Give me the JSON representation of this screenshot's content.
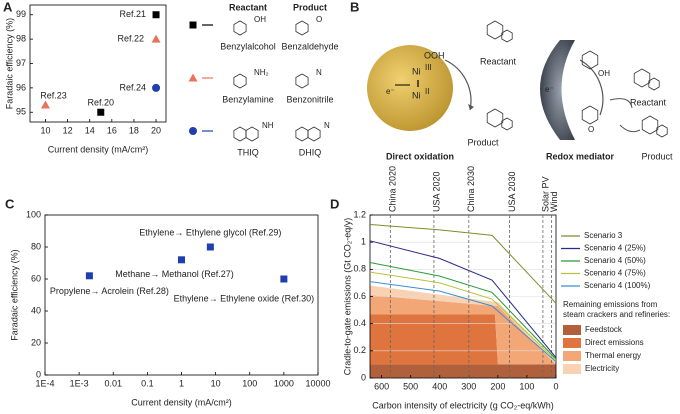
{
  "chart_data": [
    {
      "panel": "A",
      "type": "scatter",
      "xlabel": "Current density (mA/cm²)",
      "ylabel": "Faradaic efficiency (%)",
      "xlim": [
        8.6,
        20.9
      ],
      "xticks": [
        10,
        12,
        14,
        16,
        18,
        20
      ],
      "ylim": [
        94.6,
        99.4
      ],
      "yticks": [
        95,
        96,
        97,
        98,
        99
      ],
      "legend_headers": [
        "Reactant",
        "Product"
      ],
      "series": [
        {
          "marker": "square",
          "color": "#000000",
          "reactant": "Benzylalcohol",
          "product": "Benzaldehyde",
          "reactant_atom": "OH",
          "product_atom": "O",
          "x": [
            20,
            15
          ],
          "values": [
            99,
            95
          ],
          "point_labels": [
            "Ref.21",
            "Ref.20"
          ]
        },
        {
          "marker": "triangle",
          "color": "#e8735a",
          "reactant": "Benzylamine",
          "product": "Benzonitrile",
          "reactant_atom": "NH₂",
          "product_atom": "N",
          "x": [
            20,
            10
          ],
          "values": [
            98,
            95.3
          ],
          "point_labels": [
            "Ref.22",
            "Ref.23"
          ]
        },
        {
          "marker": "circle",
          "color": "#1f3fb0",
          "reactant": "THIQ",
          "product": "DHIQ",
          "reactant_atom": "NH",
          "product_atom": "N",
          "x": [
            20
          ],
          "values": [
            96
          ],
          "point_labels": [
            "Ref.24"
          ]
        }
      ]
    },
    {
      "panel": "C",
      "type": "scatter",
      "log_x": true,
      "xlabel": "Current density (mA/cm²)",
      "ylabel": "Faradaic efficiency (%)",
      "xlim": [
        0.0001,
        10000
      ],
      "xticks": [
        {
          "value": 0.0001,
          "label": "1E-4"
        },
        {
          "value": 0.001,
          "label": "1E-3"
        },
        0.01,
        0.1,
        1,
        10,
        100,
        1000,
        10000
      ],
      "ylim": [
        0,
        100
      ],
      "yticks": [
        0,
        20,
        40,
        60,
        80,
        100
      ],
      "series": [
        {
          "marker": "square",
          "color": "#1f3fb0",
          "x": [
            0.002,
            1,
            7,
            1000
          ],
          "values": [
            62,
            72,
            80,
            60
          ],
          "point_labels": [
            "Propylene→ Acrolein (Ref.28)",
            "Methane→ Methanol (Ref.27)",
            "Ethylene→ Ethylene glycol (Ref.29)",
            "Ethylene→ Ethylene oxide (Ref.30)"
          ]
        }
      ]
    },
    {
      "panel": "D",
      "type": "line_area",
      "xlabel": "Carbon intensity of electricity (g CO₂-eq/kWh)",
      "ylabel": "Cradle-to-gate emissions (Gt CO₂-eq/y)",
      "xlim": [
        640,
        0
      ],
      "xticks": [
        600,
        500,
        400,
        300,
        200,
        100,
        0
      ],
      "ylim": [
        0,
        1.2
      ],
      "yticks": [
        0,
        0.2,
        0.4,
        0.6,
        0.8,
        1,
        1.2
      ],
      "grid": true,
      "vlines": [
        {
          "label": "China 2020",
          "value": 570
        },
        {
          "label": "USA 2020",
          "value": 420
        },
        {
          "label": "China 2030",
          "value": 300
        },
        {
          "label": "USA 2030",
          "value": 160
        },
        {
          "label": "Solar PV",
          "value": 45
        },
        {
          "label": "Wind",
          "value": 15
        }
      ],
      "legend_note": [
        "Remaining emissions from",
        "steam crackers and refineries:"
      ],
      "series": [
        {
          "name": "Scenario 3",
          "color": "#7a8f2a",
          "x": [
            640,
            400,
            220,
            0
          ],
          "values": [
            1.13,
            1.09,
            1.05,
            0.55
          ]
        },
        {
          "name": "Scenario 4 (25%)",
          "color": "#2a2a8a",
          "x": [
            640,
            400,
            220,
            0
          ],
          "values": [
            1.01,
            0.88,
            0.72,
            0.15
          ]
        },
        {
          "name": "Scenario 4 (50%)",
          "color": "#2a9a3a",
          "x": [
            640,
            400,
            220,
            0
          ],
          "values": [
            0.85,
            0.75,
            0.63,
            0.14
          ]
        },
        {
          "name": "Scenario 4 (75%)",
          "color": "#b5c43a",
          "x": [
            640,
            400,
            220,
            0
          ],
          "values": [
            0.78,
            0.7,
            0.58,
            0.13
          ]
        },
        {
          "name": "Scenario 4 (100%)",
          "color": "#3a8fd0",
          "x": [
            640,
            400,
            220,
            0
          ],
          "values": [
            0.71,
            0.64,
            0.53,
            0.12
          ]
        }
      ],
      "areas": [
        {
          "name": "Feedstock",
          "color": "#b0603a",
          "x": [
            640,
            210,
            200,
            0
          ],
          "values": [
            0.1,
            0.1,
            0.1,
            0.1
          ]
        },
        {
          "name": "Direct emissions",
          "color": "#e0743e",
          "x": [
            640,
            210,
            200,
            0
          ],
          "values": [
            0.37,
            0.37,
            0,
            0
          ]
        },
        {
          "name": "Thermal energy",
          "color": "#f3a676",
          "x": [
            640,
            210,
            200,
            0
          ],
          "values": [
            0.14,
            0.06,
            0.43,
            0
          ]
        },
        {
          "name": "Electricity",
          "color": "#f9d2b3",
          "x": [
            640,
            210,
            200,
            0
          ],
          "values": [
            0.07,
            0.03,
            0.03,
            0.02
          ]
        }
      ]
    }
  ],
  "diagram_b": {
    "panel": "B",
    "left_caption": "Direct oxidation",
    "right_caption": "Redox mediator",
    "left_reactant": "Reactant",
    "left_product": "Product",
    "right_reactant": "Reactant",
    "right_product": "Product",
    "ooh": "OOH",
    "ni": "Ni",
    "ni_high": "III",
    "ni_low": "II",
    "electron": "e⁻",
    "oh": "OH",
    "o": "O"
  }
}
